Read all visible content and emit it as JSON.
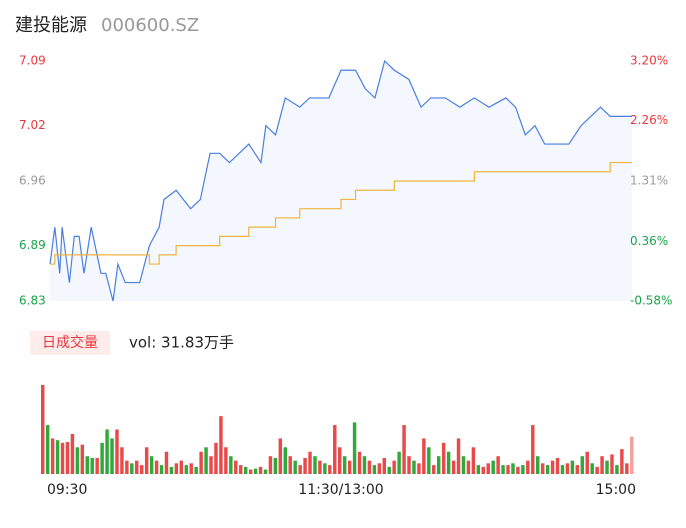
{
  "header": {
    "name": "建投能源",
    "code": "000600.SZ"
  },
  "chart_data": [
    {
      "type": "line",
      "x": [
        0,
        2,
        4,
        5,
        8,
        10,
        12,
        14,
        17,
        21,
        23,
        26,
        28,
        31,
        37,
        41,
        45,
        47,
        52,
        58,
        62,
        66,
        70,
        74,
        78,
        82,
        87,
        89,
        93,
        97,
        103,
        107,
        111,
        115,
        120,
        126,
        130,
        134,
        138,
        142,
        148,
        153,
        157,
        163,
        169,
        175,
        181,
        188,
        192,
        196,
        200,
        204,
        210,
        214,
        219,
        223,
        227,
        231,
        240
      ],
      "xlim": [
        0,
        240
      ],
      "xticks": [
        {
          "value": 0,
          "label": "09:30"
        },
        {
          "value": 120,
          "label": "11:30/13:00"
        },
        {
          "value": 240,
          "label": "15:00"
        }
      ],
      "ylim": [
        6.83,
        7.09
      ],
      "yticks": [
        7.09,
        7.02,
        6.96,
        6.89,
        6.83
      ],
      "ytick_colors": [
        "#e8383d",
        "#e8383d",
        "#999999",
        "#1aa34a",
        "#1aa34a"
      ],
      "y2lim": [
        -0.58,
        3.2
      ],
      "y2ticks": [
        {
          "value": 3.2,
          "label": "3.20%"
        },
        {
          "value": 2.26,
          "label": "2.26%"
        },
        {
          "value": 1.31,
          "label": "1.31%"
        },
        {
          "value": 0.36,
          "label": "0.36%"
        },
        {
          "value": -0.58,
          "label": "-0.58%"
        }
      ],
      "y2tick_colors": [
        "#e8383d",
        "#e8383d",
        "#999999",
        "#1aa34a",
        "#1aa34a"
      ],
      "area_color": "#f4f7fd",
      "series": [
        {
          "color": "#4a7ee0",
          "values": [
            6.87,
            6.91,
            6.86,
            6.91,
            6.85,
            6.9,
            6.9,
            6.86,
            6.91,
            6.86,
            6.86,
            6.83,
            6.87,
            6.85,
            6.85,
            6.89,
            6.91,
            6.94,
            6.95,
            6.93,
            6.94,
            6.99,
            6.99,
            6.98,
            6.99,
            7.0,
            6.98,
            7.02,
            7.01,
            7.05,
            7.04,
            7.05,
            7.05,
            7.05,
            7.08,
            7.08,
            7.06,
            7.05,
            7.09,
            7.08,
            7.07,
            7.04,
            7.05,
            7.05,
            7.04,
            7.05,
            7.04,
            7.05,
            7.04,
            7.01,
            7.02,
            7.0,
            7.0,
            7.0,
            7.02,
            7.03,
            7.04,
            7.03,
            7.03
          ]
        },
        {
          "color": "#f0b43c",
          "step": true,
          "values": [
            6.87,
            6.88,
            6.88,
            6.88,
            6.88,
            6.88,
            6.88,
            6.88,
            6.88,
            6.88,
            6.88,
            6.88,
            6.88,
            6.88,
            6.88,
            6.87,
            6.88,
            6.88,
            6.89,
            6.89,
            6.89,
            6.89,
            6.9,
            6.9,
            6.9,
            6.91,
            6.91,
            6.91,
            6.92,
            6.92,
            6.93,
            6.93,
            6.93,
            6.93,
            6.94,
            6.95,
            6.95,
            6.95,
            6.95,
            6.96,
            6.96,
            6.96,
            6.96,
            6.96,
            6.96,
            6.97,
            6.97,
            6.97,
            6.97,
            6.97,
            6.97,
            6.97,
            6.97,
            6.97,
            6.97,
            6.97,
            6.97,
            6.98,
            6.98
          ]
        }
      ]
    },
    {
      "type": "bar",
      "legend_label": "日成交量",
      "annotation": "vol: 31.83万手",
      "ylim": [
        0,
        100
      ],
      "values": [
        100,
        55,
        40,
        38,
        35,
        36,
        45,
        30,
        33,
        20,
        18,
        18,
        35,
        50,
        40,
        50,
        30,
        15,
        12,
        15,
        10,
        30,
        20,
        15,
        10,
        25,
        8,
        12,
        15,
        10,
        12,
        8,
        25,
        30,
        20,
        35,
        65,
        30,
        20,
        15,
        10,
        8,
        5,
        6,
        8,
        5,
        20,
        18,
        40,
        30,
        20,
        15,
        10,
        18,
        25,
        20,
        15,
        12,
        10,
        55,
        30,
        20,
        15,
        58,
        25,
        20,
        15,
        10,
        12,
        18,
        8,
        15,
        25,
        55,
        20,
        15,
        12,
        40,
        30,
        10,
        20,
        35,
        25,
        15,
        40,
        20,
        15,
        30,
        10,
        8,
        12,
        15,
        20,
        10,
        10,
        12,
        8,
        10,
        15,
        55,
        20,
        12,
        10,
        15,
        18,
        10,
        12,
        15,
        10,
        20,
        25,
        12,
        8,
        20,
        15,
        22,
        10,
        28,
        12,
        42
      ],
      "colors": [
        "#e84a4a",
        "#31a83a",
        "#e84a4a",
        "#31a83a",
        "#e84a4a",
        "#e84a4a",
        "#e84a4a",
        "#31a83a",
        "#e84a4a",
        "#31a83a",
        "#31a83a",
        "#e84a4a",
        "#31a83a",
        "#31a83a",
        "#31a83a",
        "#e84a4a",
        "#e84a4a",
        "#e84a4a",
        "#31a83a",
        "#e84a4a",
        "#e84a4a",
        "#e84a4a",
        "#31a83a",
        "#e84a4a",
        "#31a83a",
        "#e84a4a",
        "#31a83a",
        "#e84a4a",
        "#e84a4a",
        "#31a83a",
        "#e84a4a",
        "#31a83a",
        "#e84a4a",
        "#31a83a",
        "#e84a4a",
        "#e84a4a",
        "#e84a4a",
        "#e84a4a",
        "#31a83a",
        "#e84a4a",
        "#e84a4a",
        "#31a83a",
        "#e84a4a",
        "#31a83a",
        "#e84a4a",
        "#31a83a",
        "#e84a4a",
        "#31a83a",
        "#e84a4a",
        "#31a83a",
        "#e84a4a",
        "#31a83a",
        "#e84a4a",
        "#e84a4a",
        "#e84a4a",
        "#31a83a",
        "#e84a4a",
        "#31a83a",
        "#e84a4a",
        "#e84a4a",
        "#e84a4a",
        "#31a83a",
        "#e84a4a",
        "#31a83a",
        "#e84a4a",
        "#31a83a",
        "#e84a4a",
        "#31a83a",
        "#e84a4a",
        "#e84a4a",
        "#31a83a",
        "#e84a4a",
        "#31a83a",
        "#e84a4a",
        "#e84a4a",
        "#31a83a",
        "#e84a4a",
        "#e84a4a",
        "#31a83a",
        "#e84a4a",
        "#31a83a",
        "#e84a4a",
        "#31a83a",
        "#e84a4a",
        "#e84a4a",
        "#31a83a",
        "#e84a4a",
        "#e84a4a",
        "#31a83a",
        "#e84a4a",
        "#e84a4a",
        "#31a83a",
        "#e84a4a",
        "#31a83a",
        "#e84a4a",
        "#31a83a",
        "#e84a4a",
        "#31a83a",
        "#e84a4a",
        "#e84a4a",
        "#31a83a",
        "#e84a4a",
        "#31a83a",
        "#e84a4a",
        "#e84a4a",
        "#31a83a",
        "#e84a4a",
        "#31a83a",
        "#e84a4a",
        "#31a83a",
        "#e84a4a",
        "#31a83a",
        "#e84a4a",
        "#e84a4a",
        "#31a83a",
        "#e84a4a",
        "#31a83a",
        "#e84a4a",
        "#e84a4a",
        "#f2a0a0"
      ]
    }
  ]
}
